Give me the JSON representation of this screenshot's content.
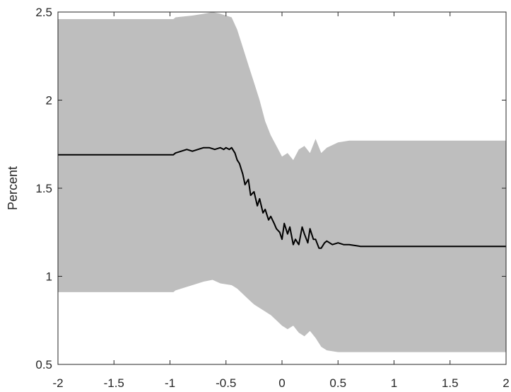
{
  "chart_data": {
    "type": "area",
    "title": "",
    "xlabel": "",
    "ylabel": "Percent",
    "xlim": [
      -2,
      2
    ],
    "ylim": [
      0.5,
      2.5
    ],
    "grid": false,
    "legend": "none",
    "x_ticks": [
      "-2",
      "-1.5",
      "-1",
      "-0.5",
      "0",
      "0.5",
      "1",
      "1.5",
      "2"
    ],
    "y_ticks": [
      "0.5",
      "1",
      "1.5",
      "2",
      "2.5"
    ],
    "colors": {
      "band": "#bebebe",
      "line": "#000000",
      "axis": "#262626"
    },
    "series": [
      {
        "kind": "band",
        "x": [
          -2,
          -0.97,
          -0.95,
          -0.8,
          -0.7,
          -0.62,
          -0.55,
          -0.45,
          -0.4,
          -0.35,
          -0.3,
          -0.25,
          -0.2,
          -0.15,
          -0.1,
          -0.05,
          0,
          0.05,
          0.1,
          0.15,
          0.2,
          0.25,
          0.3,
          0.35,
          0.4,
          0.5,
          0.6,
          0.8,
          2
        ],
        "upper": [
          2.46,
          2.46,
          2.47,
          2.48,
          2.49,
          2.5,
          2.49,
          2.47,
          2.4,
          2.3,
          2.2,
          2.1,
          2.0,
          1.88,
          1.8,
          1.74,
          1.68,
          1.7,
          1.66,
          1.72,
          1.74,
          1.7,
          1.78,
          1.7,
          1.73,
          1.76,
          1.77,
          1.77,
          1.77
        ],
        "lower": [
          0.91,
          0.91,
          0.92,
          0.95,
          0.97,
          0.98,
          0.96,
          0.95,
          0.93,
          0.9,
          0.87,
          0.84,
          0.82,
          0.8,
          0.78,
          0.75,
          0.72,
          0.7,
          0.72,
          0.68,
          0.66,
          0.69,
          0.65,
          0.6,
          0.58,
          0.57,
          0.57,
          0.57,
          0.57
        ]
      },
      {
        "kind": "line",
        "x": [
          -2,
          -0.97,
          -0.95,
          -0.9,
          -0.85,
          -0.8,
          -0.75,
          -0.7,
          -0.65,
          -0.6,
          -0.55,
          -0.52,
          -0.5,
          -0.47,
          -0.45,
          -0.42,
          -0.4,
          -0.38,
          -0.35,
          -0.33,
          -0.3,
          -0.28,
          -0.25,
          -0.22,
          -0.2,
          -0.17,
          -0.15,
          -0.12,
          -0.1,
          -0.07,
          -0.05,
          -0.02,
          0,
          0.02,
          0.05,
          0.07,
          0.1,
          0.12,
          0.15,
          0.18,
          0.2,
          0.23,
          0.25,
          0.28,
          0.3,
          0.33,
          0.35,
          0.38,
          0.4,
          0.45,
          0.5,
          0.55,
          0.6,
          0.7,
          0.8,
          0.85,
          2
        ],
        "y": [
          1.69,
          1.69,
          1.7,
          1.71,
          1.72,
          1.71,
          1.72,
          1.73,
          1.73,
          1.72,
          1.73,
          1.72,
          1.73,
          1.72,
          1.73,
          1.7,
          1.66,
          1.64,
          1.58,
          1.52,
          1.55,
          1.46,
          1.48,
          1.4,
          1.44,
          1.36,
          1.38,
          1.32,
          1.34,
          1.3,
          1.27,
          1.25,
          1.21,
          1.3,
          1.24,
          1.28,
          1.18,
          1.21,
          1.18,
          1.28,
          1.24,
          1.19,
          1.27,
          1.21,
          1.21,
          1.16,
          1.16,
          1.19,
          1.2,
          1.18,
          1.19,
          1.18,
          1.18,
          1.17,
          1.17,
          1.17,
          1.17
        ]
      }
    ]
  }
}
